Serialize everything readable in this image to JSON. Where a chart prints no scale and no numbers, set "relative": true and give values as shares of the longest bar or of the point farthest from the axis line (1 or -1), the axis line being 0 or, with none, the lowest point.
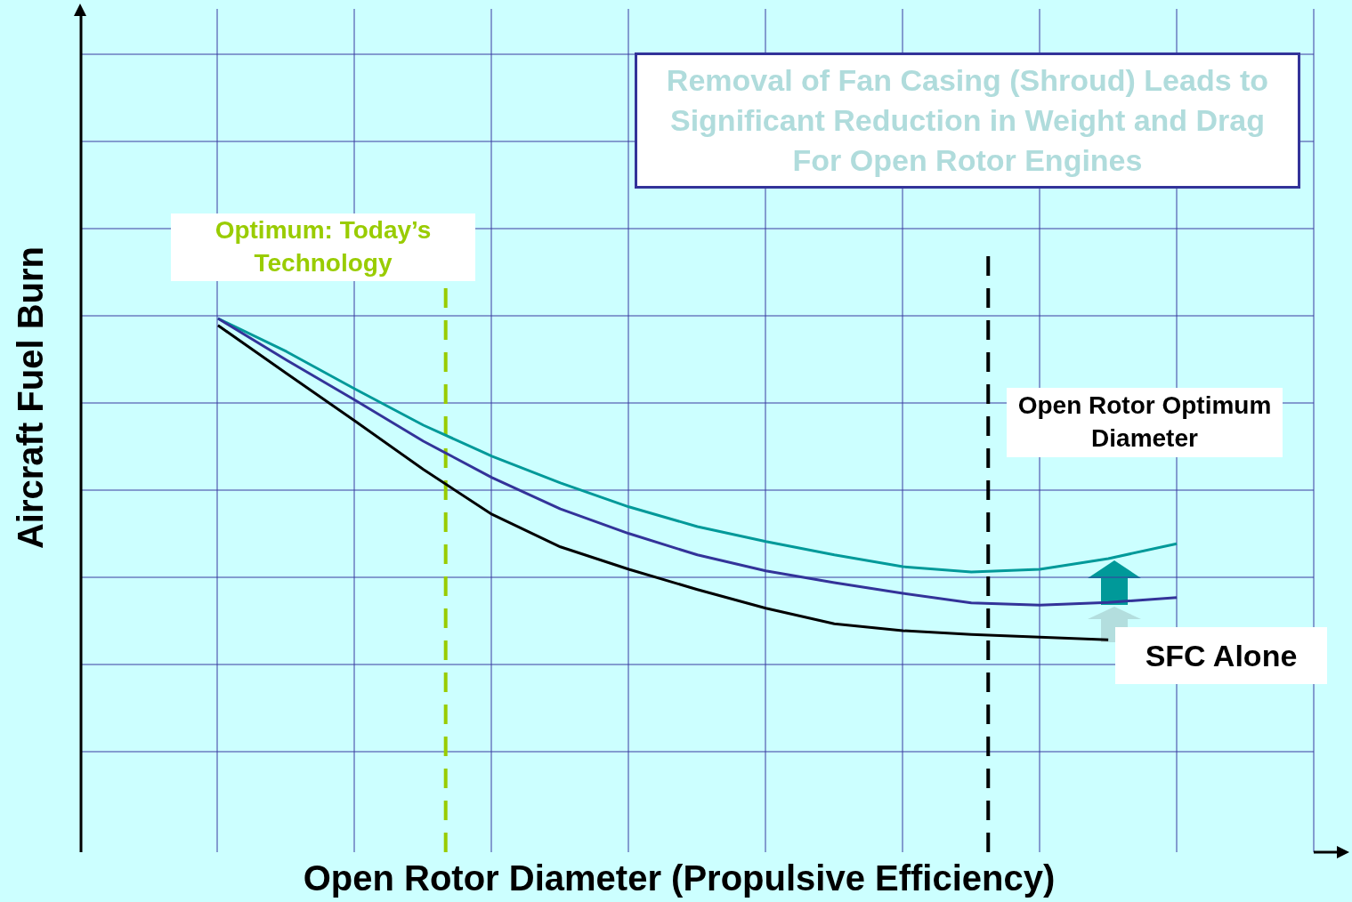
{
  "chart_data": {
    "type": "line",
    "relative": true,
    "xlabel": "Open Rotor Diameter (Propulsive Efficiency)",
    "ylabel": "Aircraft Fuel Burn",
    "categories": [
      null,
      null,
      null,
      null,
      null,
      null,
      null,
      null,
      null,
      null,
      null,
      null,
      null,
      null,
      null,
      null,
      null,
      null,
      null
    ],
    "series": [
      {
        "color": "#009999",
        "values": [
          null,
          null,
          1.0,
          0.938,
          0.868,
          0.8,
          0.742,
          0.692,
          0.647,
          0.61,
          0.582,
          0.557,
          0.535,
          0.525,
          0.53,
          0.55,
          0.578,
          null,
          null
        ]
      },
      {
        "color": "#333399",
        "values": [
          null,
          null,
          1.0,
          0.922,
          0.847,
          0.77,
          0.702,
          0.643,
          0.597,
          0.557,
          0.527,
          0.505,
          0.485,
          0.467,
          0.463,
          0.468,
          0.477,
          null,
          null
        ]
      },
      {
        "name": "SFC Alone",
        "color": "#000000",
        "values": [
          null,
          null,
          0.987,
          0.897,
          0.808,
          0.717,
          0.633,
          0.572,
          0.53,
          0.492,
          0.457,
          0.428,
          0.415,
          0.408,
          0.403,
          0.398,
          null,
          null,
          null
        ]
      }
    ],
    "annotations": [
      "Removal of Fan Casing (Shroud) Leads to Significant Reduction in Weight and Drag For Open Rotor Engines",
      "Optimum: Today’s Technology",
      "Open Rotor Optimum Diameter"
    ],
    "grid": true,
    "legend": false,
    "marker": "none",
    "line_style": "solid"
  }
}
